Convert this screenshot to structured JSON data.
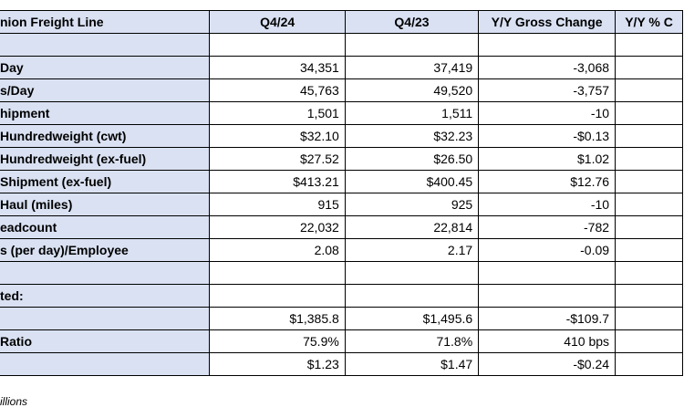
{
  "table": {
    "headers": [
      "nion Freight Line",
      "Q4/24",
      "Q4/23",
      "Y/Y Gross Change",
      "Y/Y % C"
    ],
    "rows": [
      [
        "",
        "",
        "",
        "",
        ""
      ],
      [
        "Day",
        "34,351",
        "37,419",
        "-3,068",
        ""
      ],
      [
        "s/Day",
        "45,763",
        "49,520",
        "-3,757",
        ""
      ],
      [
        "hipment",
        "1,501",
        "1,511",
        "-10",
        ""
      ],
      [
        "Hundredweight (cwt)",
        "$32.10",
        "$32.23",
        "-$0.13",
        ""
      ],
      [
        "Hundredweight (ex-fuel)",
        "$27.52",
        "$26.50",
        "$1.02",
        ""
      ],
      [
        "Shipment (ex-fuel)",
        "$413.21",
        "$400.45",
        "$12.76",
        ""
      ],
      [
        "Haul (miles)",
        "915",
        "925",
        "-10",
        ""
      ],
      [
        "eadcount",
        "22,032",
        "22,814",
        "-782",
        ""
      ],
      [
        "s (per day)/Employee",
        "2.08",
        "2.17",
        "-0.09",
        ""
      ],
      [
        "",
        "",
        "",
        "",
        ""
      ],
      [
        "ted:",
        "",
        "",
        "",
        ""
      ],
      [
        "",
        "$1,385.8",
        "$1,495.6",
        "-$109.7",
        ""
      ],
      [
        "Ratio",
        "75.9%",
        "71.8%",
        "410 bps",
        ""
      ],
      [
        "",
        "$1.23",
        "$1.47",
        "-$0.24",
        ""
      ]
    ]
  },
  "footnote": "illions"
}
